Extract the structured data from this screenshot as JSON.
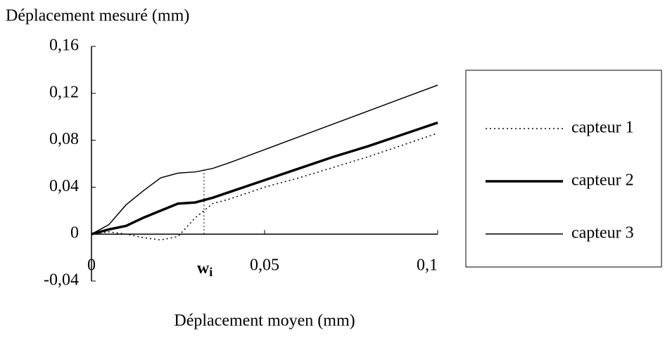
{
  "chart_data": {
    "type": "line",
    "y_label": "Déplacement mesuré (mm)",
    "x_label": "Déplacement moyen (mm)",
    "x": [
      0,
      0.005,
      0.01,
      0.015,
      0.02,
      0.025,
      0.03,
      0.035,
      0.04,
      0.05,
      0.06,
      0.07,
      0.08,
      0.09,
      0.1
    ],
    "series": [
      {
        "name": "capteur 1",
        "color": "#000000",
        "style": "dotted",
        "values": [
          0,
          0.002,
          0,
          -0.003,
          -0.005,
          -0.002,
          0.014,
          0.026,
          0.03,
          0.04,
          0.048,
          0.057,
          0.066,
          0.076,
          0.086
        ]
      },
      {
        "name": "capteur 2",
        "color": "#000000",
        "style": "thick",
        "values": [
          0,
          0.004,
          0.007,
          0.014,
          0.02,
          0.026,
          0.027,
          0.031,
          0.036,
          0.046,
          0.056,
          0.066,
          0.075,
          0.085,
          0.095
        ]
      },
      {
        "name": "capteur 3",
        "color": "#000000",
        "style": "thin",
        "values": [
          0,
          0.008,
          0.025,
          0.037,
          0.048,
          0.052,
          0.053,
          0.056,
          0.061,
          0.072,
          0.083,
          0.094,
          0.105,
          0.116,
          0.127
        ]
      }
    ],
    "xlim": [
      0,
      0.1
    ],
    "xticks": [
      0,
      {
        "value": 0.05,
        "label": "0,05"
      },
      {
        "value": 0.1,
        "label": "0,1"
      }
    ],
    "ylim": [
      -0.04,
      0.16
    ],
    "yticks": [
      {
        "value": -0.04,
        "label": "-0,04"
      },
      0,
      {
        "value": 0.04,
        "label": "0,04"
      },
      {
        "value": 0.08,
        "label": "0,08"
      },
      {
        "value": 0.12,
        "label": "0,12"
      },
      {
        "value": 0.16,
        "label": "0,16"
      }
    ],
    "annotation": {
      "text": "w",
      "sub": "i",
      "x": 0.0325,
      "y": 0.055
    },
    "legend": "right"
  }
}
